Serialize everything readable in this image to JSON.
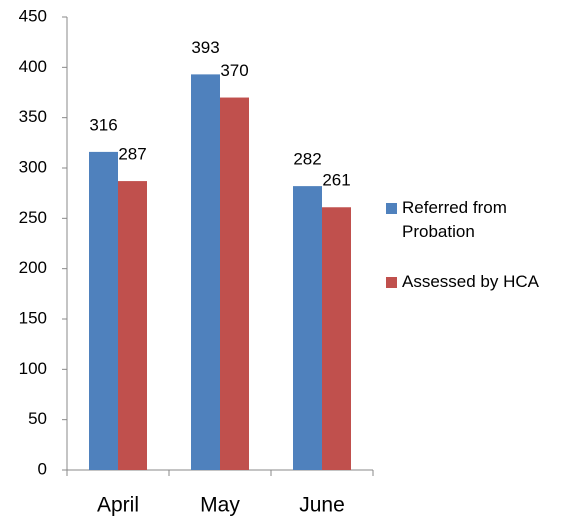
{
  "chart_data": {
    "type": "bar",
    "categories": [
      "April",
      "May",
      "June"
    ],
    "series": [
      {
        "name": "Referred from Probation",
        "color": "#4f81bd",
        "values": [
          316,
          393,
          282
        ]
      },
      {
        "name": "Assessed by HCA",
        "color": "#c0504d",
        "values": [
          287,
          370,
          261
        ]
      }
    ],
    "ylim": [
      0,
      450
    ],
    "yticks": [
      0,
      50,
      100,
      150,
      200,
      250,
      300,
      350,
      400,
      450
    ],
    "grid": false,
    "legend": "right"
  }
}
